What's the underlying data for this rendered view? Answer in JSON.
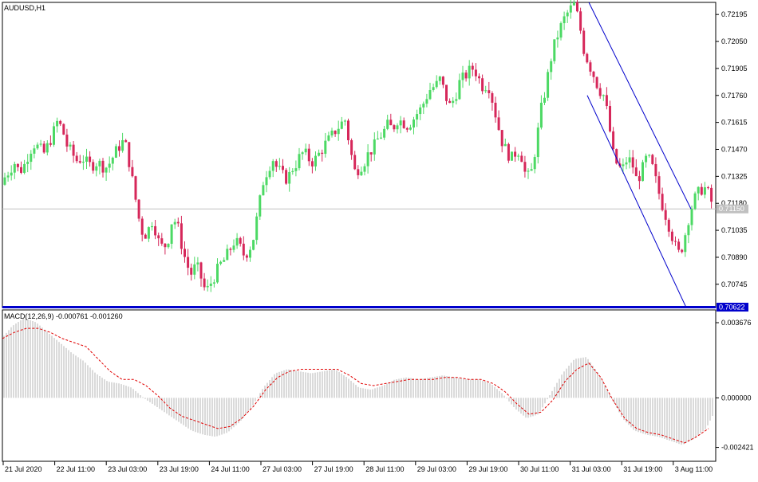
{
  "window": {
    "symbol_label": "AUDUSD,H1",
    "macd_label": "MACD(12,26,9) -0.000761 -0.001260"
  },
  "price_panel": {
    "ticks": [
      "0.72195",
      "0.72050",
      "0.71905",
      "0.71760",
      "0.71615",
      "0.71470",
      "0.71325",
      "0.71180",
      "0.71035",
      "0.70890",
      "0.70745"
    ],
    "current_price_label": "0.71150",
    "horizontal_level_label": "0.70622"
  },
  "macd_panel": {
    "ticks": [
      "0.003676",
      "0.000000",
      "-0.002421"
    ]
  },
  "time_axis": {
    "labels": [
      "21 Jul 2020",
      "22 Jul 11:00",
      "23 Jul 03:00",
      "23 Jul 19:00",
      "24 Jul 11:00",
      "27 Jul 03:00",
      "27 Jul 19:00",
      "28 Jul 11:00",
      "29 Jul 03:00",
      "29 Jul 19:00",
      "30 Jul 11:00",
      "31 Jul 03:00",
      "31 Jul 19:00",
      "3 Aug 11:00"
    ]
  },
  "colors": {
    "bull": "#4cd964",
    "bear": "#d6275a",
    "drawing": "#0000cc",
    "signal": "#e00000",
    "histogram": "#b4b4b4"
  },
  "chart_data": [
    {
      "type": "candlestick",
      "title": "AUDUSD,H1",
      "ylim": [
        0.7062,
        0.7226
      ],
      "close_path_x": [
        0,
        6,
        12,
        18,
        24,
        30,
        36,
        42,
        48,
        54,
        60,
        66,
        72,
        78,
        84,
        90,
        96,
        102,
        108,
        114,
        120,
        126,
        132,
        138,
        144,
        150,
        156,
        162,
        168,
        174,
        180,
        186,
        192,
        198,
        204,
        210,
        216,
        222,
        228,
        234,
        240,
        246,
        252,
        258,
        264,
        270,
        276,
        282,
        288,
        294,
        300,
        306,
        312,
        318,
        324,
        330,
        336,
        342,
        348,
        354,
        360,
        366,
        372,
        378,
        384,
        390,
        396,
        402,
        408,
        414,
        420,
        426,
        432,
        438,
        444,
        450,
        456,
        462,
        468,
        474,
        480,
        486,
        492,
        498,
        504,
        510,
        516,
        522,
        528,
        534,
        540,
        546,
        552,
        558,
        564,
        570,
        576,
        582,
        588,
        594,
        600,
        606,
        612,
        618,
        624,
        630,
        636,
        642,
        648,
        654,
        660,
        666,
        672,
        678,
        684,
        690,
        696,
        702,
        708,
        714,
        720,
        726,
        732,
        738,
        744,
        750,
        756,
        762,
        768,
        774,
        780,
        786,
        792,
        798,
        804,
        810,
        816,
        822,
        828,
        834,
        840,
        846,
        852,
        858,
        864,
        870,
        876,
        882,
        888,
        894
      ],
      "close_path_y": [
        0.7128,
        0.7132,
        0.7136,
        0.714,
        0.7135,
        0.7138,
        0.7145,
        0.715,
        0.7148,
        0.7144,
        0.7149,
        0.7155,
        0.7162,
        0.7158,
        0.7149,
        0.7145,
        0.7141,
        0.7142,
        0.714,
        0.7138,
        0.714,
        0.7139,
        0.7137,
        0.714,
        0.7145,
        0.7149,
        0.7152,
        0.714,
        0.7125,
        0.711,
        0.71,
        0.7104,
        0.7109,
        0.7098,
        0.7094,
        0.7097,
        0.711,
        0.7107,
        0.7095,
        0.7085,
        0.708,
        0.7085,
        0.7078,
        0.707,
        0.7075,
        0.708,
        0.7085,
        0.7088,
        0.7093,
        0.7098,
        0.7095,
        0.709,
        0.7093,
        0.71,
        0.7115,
        0.713,
        0.7137,
        0.7142,
        0.7136,
        0.7133,
        0.7131,
        0.7136,
        0.714,
        0.7145,
        0.7144,
        0.714,
        0.7142,
        0.7146,
        0.715,
        0.7153,
        0.7157,
        0.716,
        0.7163,
        0.715,
        0.7135,
        0.7137,
        0.714,
        0.7145,
        0.7148,
        0.7152,
        0.7156,
        0.716,
        0.7158,
        0.7163,
        0.7162,
        0.716,
        0.7162,
        0.7166,
        0.7169,
        0.7175,
        0.718,
        0.7181,
        0.7185,
        0.7176,
        0.717,
        0.7175,
        0.7183,
        0.7186,
        0.7189,
        0.7191,
        0.7185,
        0.718,
        0.7182,
        0.7172,
        0.716,
        0.715,
        0.7145,
        0.7142,
        0.7147,
        0.7143,
        0.713,
        0.7135,
        0.715,
        0.7168,
        0.718,
        0.7195,
        0.7205,
        0.7212,
        0.7218,
        0.7222,
        0.7225,
        0.7215,
        0.72,
        0.7193,
        0.7187,
        0.718,
        0.7176,
        0.7165,
        0.7145,
        0.7138,
        0.7136,
        0.7142,
        0.714,
        0.713,
        0.7135,
        0.7142,
        0.714,
        0.713,
        0.712,
        0.7112,
        0.7104,
        0.7095,
        0.709,
        0.71,
        0.7112,
        0.712,
        0.7124,
        0.7127,
        0.7123,
        0.7116
      ],
      "current_price": 0.7115,
      "horizontal_level": 0.70622,
      "trendline_upper": {
        "x": [
          738,
          866
        ],
        "y": [
          0.7226,
          0.7115
        ]
      },
      "trendline_lower": {
        "x": [
          736,
          860
        ],
        "y": [
          0.7176,
          0.7062
        ]
      }
    },
    {
      "type": "macd",
      "title": "MACD(12,26,9) -0.000761 -0.001260",
      "ylim": [
        -0.0031,
        0.0043
      ],
      "main_x": [
        0,
        15,
        30,
        45,
        60,
        75,
        90,
        105,
        120,
        135,
        150,
        165,
        180,
        195,
        210,
        225,
        240,
        255,
        270,
        285,
        300,
        315,
        330,
        345,
        360,
        375,
        390,
        405,
        420,
        435,
        450,
        465,
        480,
        495,
        510,
        525,
        540,
        555,
        570,
        585,
        600,
        615,
        630,
        645,
        660,
        675,
        690,
        705,
        720,
        735,
        750,
        765,
        780,
        795,
        810,
        825,
        840,
        855,
        870,
        885,
        894
      ],
      "main_y": [
        0.0028,
        0.0035,
        0.0039,
        0.0037,
        0.0032,
        0.0027,
        0.0022,
        0.0018,
        0.0012,
        0.0008,
        0.0007,
        0.0005,
        0.0,
        -0.0004,
        -0.0008,
        -0.0012,
        -0.0016,
        -0.0018,
        -0.0019,
        -0.0017,
        -0.0012,
        -0.0005,
        0.0005,
        0.0012,
        0.0014,
        0.0013,
        0.0012,
        0.0013,
        0.0014,
        0.001,
        0.0005,
        0.0004,
        0.0006,
        0.0009,
        0.001,
        0.0009,
        0.001,
        0.0011,
        0.001,
        0.0009,
        0.0009,
        0.0007,
        0.0002,
        -0.0005,
        -0.001,
        -0.0008,
        0.0002,
        0.0012,
        0.0019,
        0.002,
        0.0012,
        0.0001,
        -0.001,
        -0.0016,
        -0.0018,
        -0.0019,
        -0.0021,
        -0.0023,
        -0.002,
        -0.0015,
        -0.0008
      ],
      "signal_x": [
        0,
        15,
        30,
        45,
        60,
        75,
        90,
        105,
        120,
        135,
        150,
        165,
        180,
        195,
        210,
        225,
        240,
        255,
        270,
        285,
        300,
        315,
        330,
        345,
        360,
        375,
        390,
        405,
        420,
        435,
        450,
        465,
        480,
        495,
        510,
        525,
        540,
        555,
        570,
        585,
        600,
        615,
        630,
        645,
        660,
        675,
        690,
        705,
        720,
        735,
        750,
        765,
        780,
        795,
        810,
        825,
        840,
        855,
        870,
        885
      ],
      "signal_y": [
        0.0029,
        0.0032,
        0.0034,
        0.0034,
        0.0032,
        0.0029,
        0.0027,
        0.0025,
        0.0019,
        0.0013,
        0.0009,
        0.0009,
        0.0006,
        0.0001,
        -0.0005,
        -0.0009,
        -0.0011,
        -0.0013,
        -0.0015,
        -0.0014,
        -0.001,
        -0.0004,
        0.0004,
        0.001,
        0.0013,
        0.0014,
        0.0014,
        0.0014,
        0.0014,
        0.0011,
        0.0007,
        0.0006,
        0.0007,
        0.0008,
        0.0009,
        0.0009,
        0.0009,
        0.001,
        0.001,
        0.0009,
        0.0009,
        0.0007,
        0.0003,
        -0.0003,
        -0.0008,
        -0.0007,
        -0.0001,
        0.0008,
        0.0014,
        0.0017,
        0.001,
        -0.0001,
        -0.001,
        -0.0015,
        -0.0017,
        -0.0018,
        -0.002,
        -0.0022,
        -0.0019,
        -0.0015
      ]
    }
  ]
}
